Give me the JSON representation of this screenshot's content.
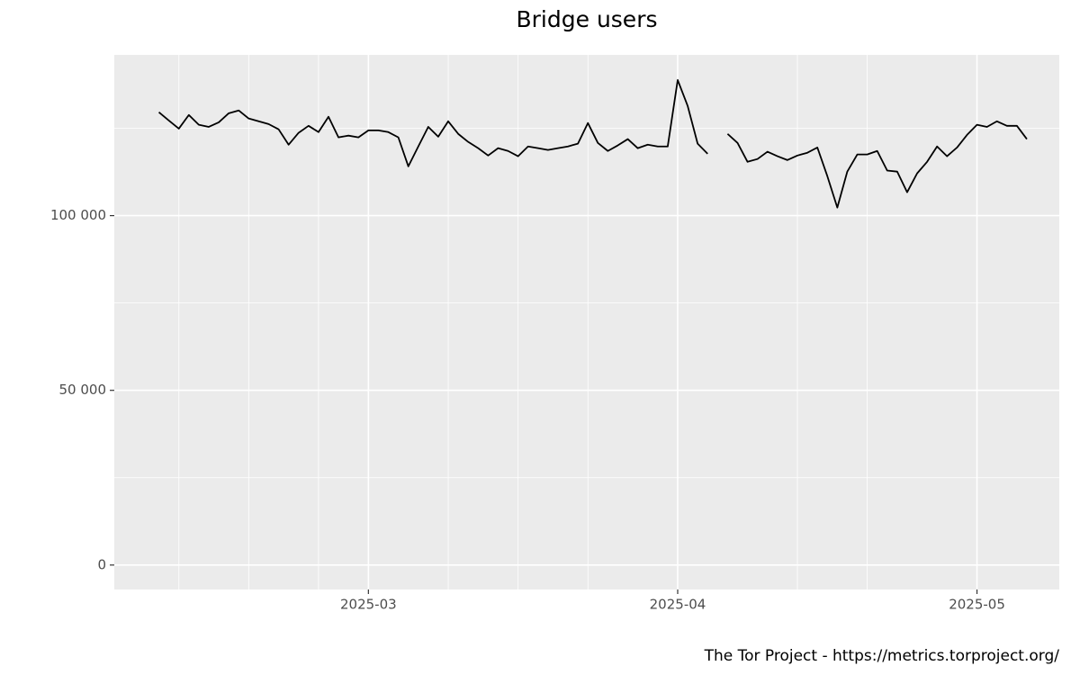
{
  "chart_data": {
    "type": "line",
    "title": "Bridge users",
    "caption": "The Tor Project - https://metrics.torproject.org/",
    "categories": [
      null,
      null,
      null,
      null,
      null,
      null,
      null,
      null,
      null,
      null,
      null,
      null,
      null,
      null,
      null,
      null,
      null,
      null,
      null,
      null,
      null,
      "2025-03",
      null,
      null,
      null,
      null,
      null,
      null,
      null,
      null,
      null,
      null,
      null,
      null,
      null,
      null,
      null,
      null,
      null,
      null,
      null,
      null,
      null,
      null,
      null,
      null,
      null,
      null,
      null,
      null,
      null,
      null,
      "2025-04",
      null,
      null,
      null,
      null,
      null,
      null,
      null,
      null,
      null,
      null,
      null,
      null,
      null,
      null,
      null,
      null,
      null,
      null,
      null,
      null,
      null,
      null,
      null,
      null,
      null,
      null,
      null,
      null,
      null,
      "2025-05",
      null,
      null,
      null,
      null,
      null
    ],
    "series": [
      {
        "name": "Bridge users",
        "color": "#000000",
        "values": [
          129600,
          127200,
          124900,
          128800,
          126000,
          125400,
          126700,
          129300,
          130100,
          127800,
          127000,
          126200,
          124700,
          120300,
          123700,
          125700,
          123900,
          128300,
          122400,
          122900,
          122400,
          124400,
          124400,
          123900,
          122400,
          114100,
          119800,
          125400,
          122600,
          127000,
          123400,
          121100,
          119300,
          117200,
          119300,
          118500,
          117000,
          119800,
          119300,
          118800,
          119300,
          119800,
          120600,
          126500,
          120800,
          118500,
          120100,
          121900,
          119300,
          120300,
          119800,
          119800,
          138800,
          131400,
          120600,
          117700,
          null,
          123400,
          120800,
          115400,
          116200,
          118300,
          117000,
          115900,
          117200,
          118000,
          119500,
          111300,
          102300,
          112600,
          117500,
          117500,
          118500,
          112900,
          112600,
          106700,
          112100,
          115400,
          119800,
          117000,
          119500,
          123100,
          126000,
          125400,
          127000,
          125700,
          125700,
          121900
        ]
      }
    ],
    "ylim": [
      -7000,
      146000
    ],
    "yticks": [
      0,
      {
        "value": 50000,
        "label": "50 000"
      },
      {
        "value": 100000,
        "label": "100 000"
      }
    ],
    "grid": true
  }
}
